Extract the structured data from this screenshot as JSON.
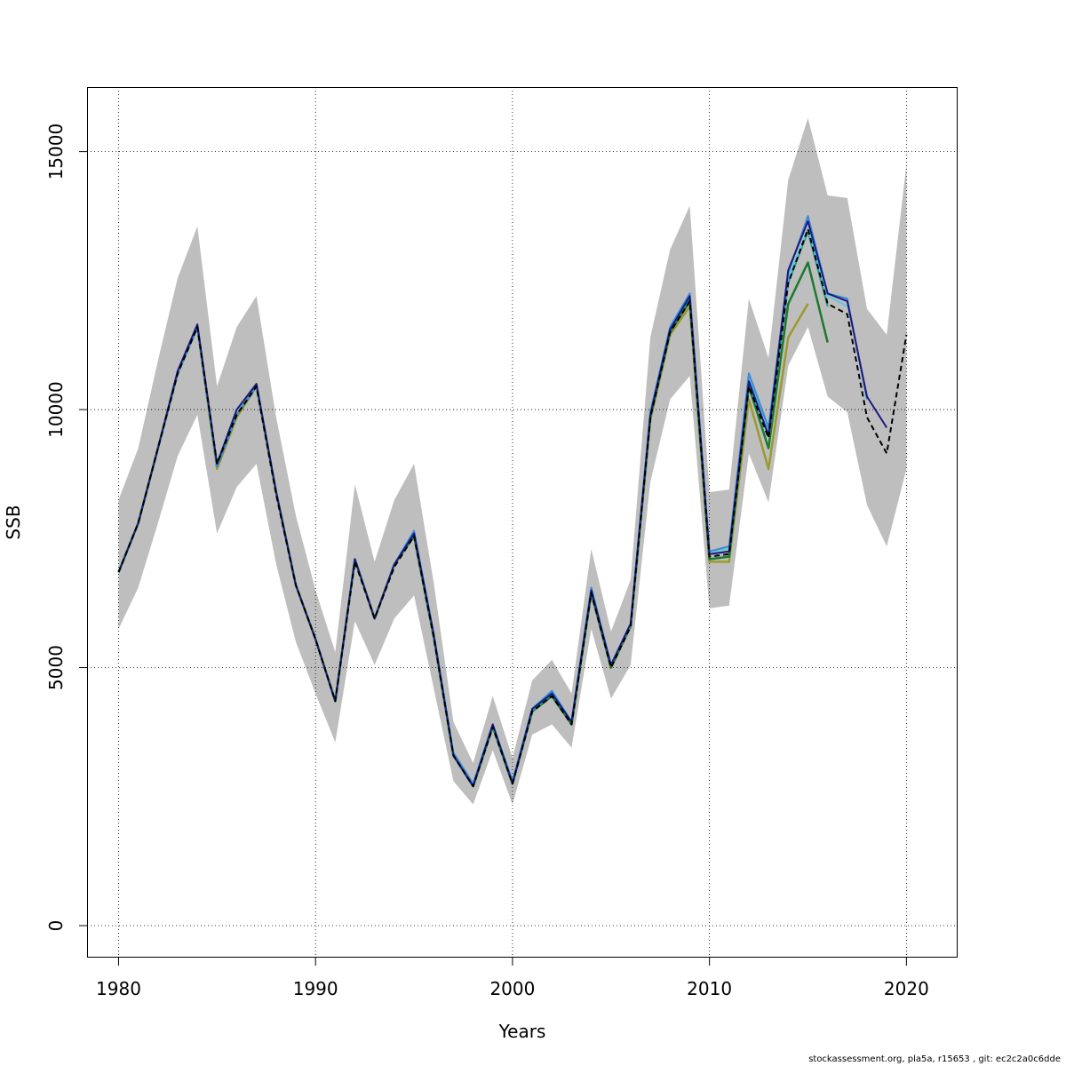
{
  "chart_data": {
    "type": "line",
    "title": "",
    "xlabel": "Years",
    "ylabel": "SSB",
    "xlim": [
      1978.4,
      2022.6
    ],
    "ylim": [
      -620,
      16250
    ],
    "xticks": [
      1980,
      1990,
      2000,
      2010,
      2020
    ],
    "yticks": [
      0,
      5000,
      10000,
      15000
    ],
    "xtick_labels": [
      "1980",
      "1990",
      "2000",
      "2010",
      "2020"
    ],
    "ytick_labels": [
      "0",
      "5000",
      "10000",
      "15000"
    ],
    "grid": true,
    "legend": "none",
    "colors": {
      "band": "#bebebe",
      "main": "#000000",
      "grid": "#000000"
    },
    "band": {
      "x": [
        1980,
        1981,
        1982,
        1983,
        1984,
        1985,
        1986,
        1987,
        1988,
        1989,
        1990,
        1991,
        1992,
        1993,
        1994,
        1995,
        1996,
        1997,
        1998,
        1999,
        2000,
        2001,
        2002,
        2003,
        2004,
        2005,
        2006,
        2007,
        2008,
        2009,
        2010,
        2011,
        2012,
        2013,
        2014,
        2015,
        2016,
        2017,
        2018,
        2019,
        2020
      ],
      "low": [
        5750,
        6550,
        7800,
        9100,
        9900,
        7600,
        8500,
        8950,
        7000,
        5500,
        4500,
        3550,
        5900,
        5050,
        5950,
        6400,
        4600,
        2800,
        2350,
        3400,
        2350,
        3700,
        3900,
        3450,
        5750,
        4400,
        5050,
        8600,
        10200,
        10650,
        6150,
        6200,
        9150,
        8200,
        10850,
        11600,
        10250,
        9950,
        8150,
        7350,
        8850
      ],
      "high": [
        8250,
        9250,
        10950,
        12550,
        13550,
        10450,
        11600,
        12200,
        9850,
        7950,
        6500,
        5300,
        8550,
        7050,
        8250,
        8950,
        6650,
        3950,
        3150,
        4450,
        3250,
        4750,
        5150,
        4500,
        7300,
        5700,
        6700,
        11400,
        13100,
        13950,
        8400,
        8450,
        12150,
        11000,
        14450,
        15650,
        14150,
        14100,
        11950,
        11450,
        14750
      ]
    },
    "series": [
      {
        "color": "#000000",
        "dash": "6,4",
        "width": 2,
        "x": [
          1980,
          1981,
          1982,
          1983,
          1984,
          1985,
          1986,
          1987,
          1988,
          1989,
          1990,
          1991,
          1992,
          1993,
          1994,
          1995,
          1996,
          1997,
          1998,
          1999,
          2000,
          2001,
          2002,
          2003,
          2004,
          2005,
          2006,
          2007,
          2008,
          2009,
          2010,
          2011,
          2012,
          2013,
          2014,
          2015,
          2016,
          2017,
          2018,
          2019,
          2020
        ],
        "y": [
          6850,
          7800,
          9250,
          10700,
          11600,
          8950,
          9900,
          10450,
          8350,
          6600,
          5550,
          4350,
          7050,
          5950,
          6950,
          7550,
          5600,
          3300,
          2700,
          3850,
          2750,
          4150,
          4450,
          3900,
          6450,
          5000,
          5800,
          9850,
          11500,
          12100,
          7150,
          7200,
          10450,
          9450,
          12450,
          13500,
          12050,
          11850,
          9850,
          9150,
          11450
        ]
      },
      {
        "color": "#1a1a80",
        "dash": "",
        "width": 2,
        "x": [
          1980,
          1981,
          1982,
          1983,
          1984,
          1985,
          1986,
          1987,
          1988,
          1989,
          1990,
          1991,
          1992,
          1993,
          1994,
          1995,
          1996,
          1997,
          1998,
          1999,
          2000,
          2001,
          2002,
          2003,
          2004,
          2005,
          2006,
          2007,
          2008,
          2009,
          2010,
          2011,
          2012,
          2013,
          2014,
          2015,
          2016,
          2017,
          2018,
          2019
        ],
        "y": [
          6850,
          7800,
          9250,
          10750,
          11650,
          8950,
          10000,
          10500,
          8400,
          6600,
          5550,
          4350,
          7100,
          5950,
          7000,
          7600,
          5650,
          3300,
          2700,
          3900,
          2750,
          4200,
          4500,
          3950,
          6500,
          5050,
          5850,
          9900,
          11550,
          12200,
          7200,
          7250,
          10550,
          9500,
          12700,
          13650,
          12250,
          12100,
          10250,
          9650
        ]
      },
      {
        "color": "#3a8ad8",
        "dash": "",
        "width": 2,
        "x": [
          1980,
          1981,
          1982,
          1983,
          1984,
          1985,
          1986,
          1987,
          1988,
          1989,
          1990,
          1991,
          1992,
          1993,
          1994,
          1995,
          1996,
          1997,
          1998,
          1999,
          2000,
          2001,
          2002,
          2003,
          2004,
          2005,
          2006,
          2007,
          2008,
          2009,
          2010,
          2011,
          2012,
          2013,
          2014,
          2015,
          2016,
          2017,
          2018
        ],
        "y": [
          6850,
          7800,
          9250,
          10700,
          11600,
          8900,
          9900,
          10450,
          8400,
          6600,
          5550,
          4350,
          7100,
          5950,
          7000,
          7650,
          5650,
          3350,
          2750,
          3900,
          2800,
          4200,
          4550,
          3950,
          6550,
          5050,
          5850,
          9950,
          11600,
          12250,
          7250,
          7350,
          10700,
          9650,
          12650,
          13750,
          12250,
          12150,
          10200
        ]
      },
      {
        "color": "#5fc8e0",
        "dash": "",
        "width": 2,
        "x": [
          1980,
          1981,
          1982,
          1983,
          1984,
          1985,
          1986,
          1987,
          1988,
          1989,
          1990,
          1991,
          1992,
          1993,
          1994,
          1995,
          1996,
          1997,
          1998,
          1999,
          2000,
          2001,
          2002,
          2003,
          2004,
          2005,
          2006,
          2007,
          2008,
          2009,
          2010,
          2011,
          2012,
          2013,
          2014,
          2015,
          2016,
          2017
        ],
        "y": [
          6850,
          7800,
          9250,
          10700,
          11600,
          8900,
          9900,
          10450,
          8400,
          6600,
          5550,
          4350,
          7100,
          5950,
          7000,
          7650,
          5650,
          3350,
          2750,
          3900,
          2800,
          4200,
          4550,
          3950,
          6550,
          5050,
          5850,
          9950,
          11600,
          12250,
          7250,
          7300,
          10650,
          9600,
          12550,
          13500,
          12200,
          12000
        ]
      },
      {
        "color": "#1f9a8a",
        "dash": "",
        "width": 2,
        "x": [
          1980,
          1981,
          1982,
          1983,
          1984,
          1985,
          1986,
          1987,
          1988,
          1989,
          1990,
          1991,
          1992,
          1993,
          1994,
          1995,
          1996,
          1997,
          1998,
          1999,
          2000,
          2001,
          2002,
          2003,
          2004,
          2005,
          2006,
          2007,
          2008,
          2009,
          2010,
          2011,
          2012,
          2013,
          2014,
          2015,
          2016
        ],
        "y": [
          6850,
          7800,
          9250,
          10700,
          11600,
          8900,
          9900,
          10450,
          8400,
          6600,
          5550,
          4350,
          7100,
          5950,
          7000,
          7600,
          5600,
          3300,
          2700,
          3850,
          2750,
          4150,
          4500,
          3950,
          6500,
          5050,
          5800,
          9900,
          11550,
          12150,
          7200,
          7250,
          10600,
          9500,
          12450,
          13450,
          12000
        ]
      },
      {
        "color": "#1a7a2e",
        "dash": "",
        "width": 2.5,
        "x": [
          1980,
          1981,
          1982,
          1983,
          1984,
          1985,
          1986,
          1987,
          1988,
          1989,
          1990,
          1991,
          1992,
          1993,
          1994,
          1995,
          1996,
          1997,
          1998,
          1999,
          2000,
          2001,
          2002,
          2003,
          2004,
          2005,
          2006,
          2007,
          2008,
          2009,
          2010,
          2011,
          2012,
          2013,
          2014,
          2015,
          2016
        ],
        "y": [
          6850,
          7800,
          9250,
          10700,
          11600,
          8900,
          9900,
          10450,
          8400,
          6600,
          5550,
          4350,
          7100,
          5950,
          7000,
          7550,
          5600,
          3300,
          2700,
          3850,
          2750,
          4150,
          4450,
          3900,
          6450,
          5000,
          5800,
          9850,
          11500,
          12100,
          7100,
          7150,
          10450,
          9250,
          12050,
          12850,
          11300
        ]
      },
      {
        "color": "#9a9a30",
        "dash": "",
        "width": 2.5,
        "x": [
          1980,
          1981,
          1982,
          1983,
          1984,
          1985,
          1986,
          1987,
          1988,
          1989,
          1990,
          1991,
          1992,
          1993,
          1994,
          1995,
          1996,
          1997,
          1998,
          1999,
          2000,
          2001,
          2002,
          2003,
          2004,
          2005,
          2006,
          2007,
          2008,
          2009,
          2010,
          2011,
          2012,
          2013,
          2014,
          2015
        ],
        "y": [
          6850,
          7800,
          9250,
          10700,
          11600,
          8850,
          9850,
          10450,
          8400,
          6600,
          5550,
          4350,
          7100,
          5950,
          7000,
          7550,
          5600,
          3300,
          2700,
          3850,
          2750,
          4150,
          4450,
          3900,
          6450,
          5000,
          5800,
          9800,
          11450,
          12000,
          7050,
          7050,
          10200,
          8850,
          11400,
          12050
        ]
      }
    ]
  },
  "footer": {
    "text": "stockassessment.org, pla5a, r15653 , git: ec2c2a0c6dde"
  }
}
